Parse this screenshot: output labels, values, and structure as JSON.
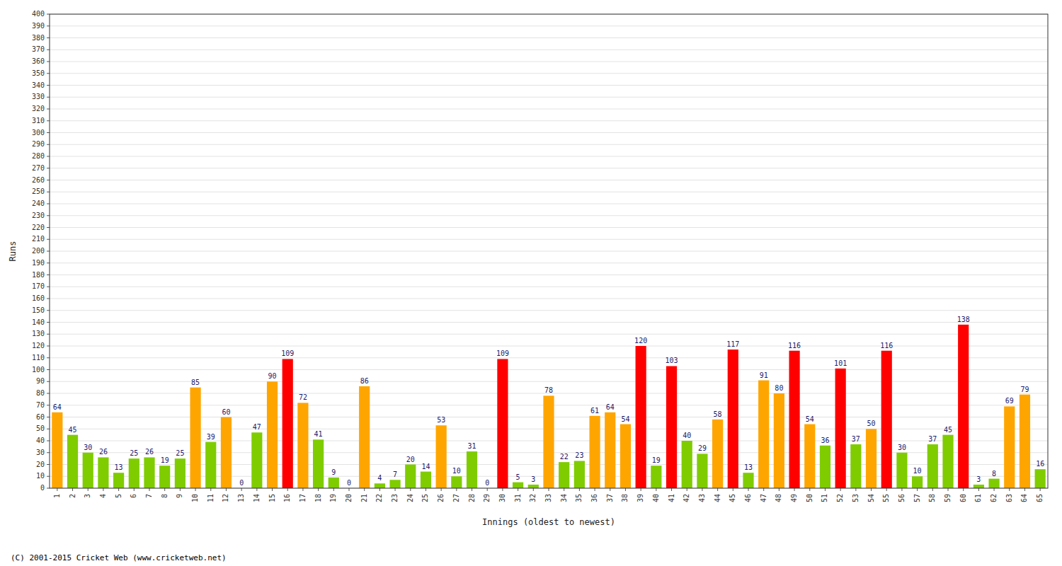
{
  "chart_data": {
    "type": "bar",
    "xlabel": "Innings (oldest to newest)",
    "ylabel": "Runs",
    "annotations": [
      "(C) 2001-2015 Cricket Web (www.cricketweb.net)"
    ],
    "categories": [
      "1",
      "2",
      "3",
      "4",
      "5",
      "6",
      "7",
      "8",
      "9",
      "10",
      "11",
      "12",
      "13",
      "14",
      "15",
      "16",
      "17",
      "18",
      "19",
      "20",
      "21",
      "22",
      "23",
      "24",
      "25",
      "26",
      "27",
      "28",
      "29",
      "30",
      "31",
      "32",
      "33",
      "34",
      "35",
      "36",
      "37",
      "38",
      "39",
      "40",
      "41",
      "42",
      "43",
      "44",
      "45",
      "46",
      "47",
      "48",
      "49",
      "50",
      "51",
      "52",
      "53",
      "54",
      "55",
      "56",
      "57",
      "58",
      "59",
      "60",
      "61",
      "62",
      "63",
      "64",
      "65"
    ],
    "values": [
      64,
      45,
      30,
      26,
      13,
      25,
      26,
      19,
      25,
      85,
      39,
      60,
      0,
      47,
      90,
      109,
      72,
      41,
      9,
      0,
      86,
      4,
      7,
      20,
      14,
      53,
      10,
      31,
      0,
      109,
      5,
      3,
      78,
      22,
      23,
      61,
      64,
      54,
      120,
      19,
      103,
      40,
      29,
      58,
      117,
      13,
      91,
      80,
      116,
      54,
      36,
      101,
      37,
      50,
      116,
      30,
      10,
      37,
      45,
      138,
      3,
      8,
      69,
      79,
      16
    ],
    "colors": [
      "#FFA500",
      "#7FCC00",
      "#7FCC00",
      "#7FCC00",
      "#7FCC00",
      "#7FCC00",
      "#7FCC00",
      "#7FCC00",
      "#7FCC00",
      "#FFA500",
      "#7FCC00",
      "#FFA500",
      "#7FCC00",
      "#7FCC00",
      "#FFA500",
      "#FF0000",
      "#FFA500",
      "#7FCC00",
      "#7FCC00",
      "#7FCC00",
      "#FFA500",
      "#7FCC00",
      "#7FCC00",
      "#7FCC00",
      "#7FCC00",
      "#FFA500",
      "#7FCC00",
      "#7FCC00",
      "#7FCC00",
      "#FF0000",
      "#7FCC00",
      "#7FCC00",
      "#FFA500",
      "#7FCC00",
      "#7FCC00",
      "#FFA500",
      "#FFA500",
      "#FFA500",
      "#FF0000",
      "#7FCC00",
      "#FF0000",
      "#7FCC00",
      "#7FCC00",
      "#FFA500",
      "#FF0000",
      "#7FCC00",
      "#FFA500",
      "#FFA500",
      "#FF0000",
      "#FFA500",
      "#7FCC00",
      "#FF0000",
      "#7FCC00",
      "#FFA500",
      "#FF0000",
      "#7FCC00",
      "#7FCC00",
      "#7FCC00",
      "#7FCC00",
      "#FF0000",
      "#7FCC00",
      "#7FCC00",
      "#FFA500",
      "#FFA500",
      "#7FCC00"
    ],
    "ylim": [
      0,
      400
    ],
    "yticks": [
      0,
      10,
      20,
      30,
      40,
      50,
      60,
      70,
      80,
      90,
      100,
      110,
      120,
      130,
      140,
      150,
      160,
      170,
      180,
      190,
      200,
      210,
      220,
      230,
      240,
      250,
      260,
      270,
      280,
      290,
      300,
      310,
      320,
      330,
      340,
      350,
      360,
      370,
      380,
      390,
      400
    ],
    "grid": true,
    "data_labels": true
  }
}
